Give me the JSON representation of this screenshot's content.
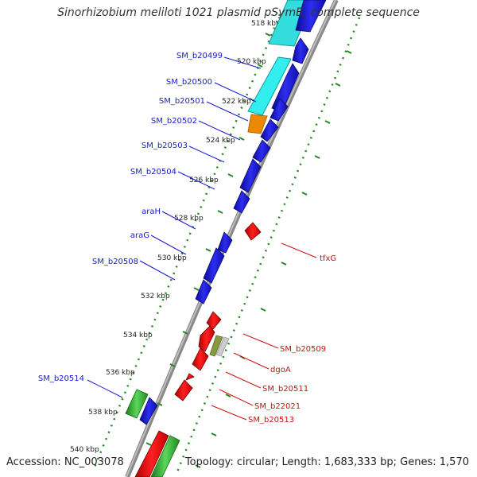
{
  "title": "Sinorhizobium meliloti 1021 plasmid pSymB, complete sequence",
  "footer": {
    "accession": "Accession: NC_003078",
    "topology": "Topology: circular; Length: 1,683,333 bp; Genes: 1,570"
  },
  "colors": {
    "forward_genes": "#1a1adc",
    "reverse_genes": "#e81414",
    "cyan_feature": "#22cccc",
    "orange_feature": "#ee8800",
    "green_feature": "#33aa33",
    "olive_feature": "#889944",
    "backbone": "#888888",
    "dotted_rings": "#228822",
    "forward_label": "#1a1acc",
    "reverse_label": "#cc1111"
  },
  "ticks": [
    "518 kbp",
    "520 kbp",
    "522 kbp",
    "524 kbp",
    "526 kbp",
    "528 kbp",
    "530 kbp",
    "532 kbp",
    "534 kbp",
    "536 kbp",
    "538 kbp",
    "540 kbp"
  ],
  "forward_gene_labels": [
    "SM_b20499",
    "SM_b20500",
    "SM_b20501",
    "SM_b20502",
    "SM_b20503",
    "SM_b20504",
    "araH",
    "araG",
    "SM_b20508",
    "SM_b20514"
  ],
  "reverse_gene_labels": [
    "tfxG",
    "SM_b20509",
    "dgoA",
    "SM_b20511",
    "SM_b22021",
    "SM_b20513"
  ]
}
